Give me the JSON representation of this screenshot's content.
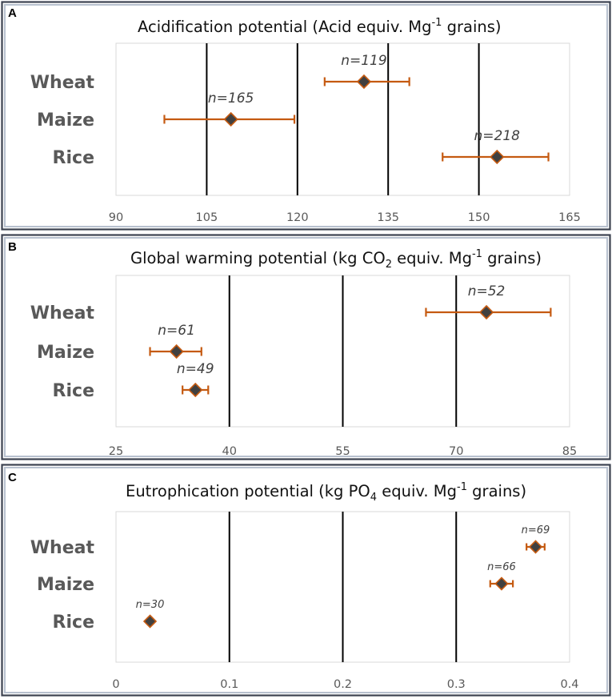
{
  "chart_data": [
    {
      "type": "scatter",
      "panel": "A",
      "title": "Acidification potential (Acid equiv. Mg",
      "title_sup": "-1",
      "title_end": " grains)",
      "categories": [
        "Wheat",
        "Maize",
        "Rice"
      ],
      "x": [
        131,
        109,
        153
      ],
      "x_err_low": [
        124.5,
        98,
        144
      ],
      "x_err_high": [
        138.5,
        119.5,
        161.5
      ],
      "n_labels": [
        "n=119",
        "n=165",
        "n=218"
      ],
      "xlim": [
        90,
        165
      ],
      "ticks": [
        90,
        105,
        120,
        135,
        150,
        165
      ],
      "tick_labels": [
        "90",
        "105",
        "120",
        "135",
        "150",
        "165"
      ],
      "gridlines": [
        105,
        120,
        135,
        150
      ],
      "xlabel": "",
      "ylabel": ""
    },
    {
      "type": "scatter",
      "panel": "B",
      "title": "Global warming potential (kg CO",
      "title_sub": "2",
      "title_mid": " equiv. Mg",
      "title_sup": "-1",
      "title_end": " grains)",
      "categories": [
        "Wheat",
        "Maize",
        "Rice"
      ],
      "x": [
        74,
        33,
        35.5
      ],
      "x_err_low": [
        66,
        29.5,
        33.8
      ],
      "x_err_high": [
        82.5,
        36.3,
        37.2
      ],
      "n_labels": [
        "n=52",
        "n=61",
        "n=49"
      ],
      "xlim": [
        25,
        85
      ],
      "ticks": [
        25,
        40,
        55,
        70,
        85
      ],
      "tick_labels": [
        "25",
        "40",
        "55",
        "70",
        "85"
      ],
      "gridlines": [
        40,
        55,
        70
      ],
      "xlabel": "",
      "ylabel": ""
    },
    {
      "type": "scatter",
      "panel": "C",
      "title": "Eutrophication potential (kg PO",
      "title_sub": "4",
      "title_mid": " equiv. Mg",
      "title_sup": "-1",
      "title_end": " grains)",
      "categories": [
        "Wheat",
        "Maize",
        "Rice"
      ],
      "x": [
        0.37,
        0.34,
        0.03
      ],
      "x_err_low": [
        0.362,
        0.33,
        0.03
      ],
      "x_err_high": [
        0.378,
        0.35,
        0.03
      ],
      "n_labels": [
        "n=69",
        "n=66",
        "n=30"
      ],
      "xlim": [
        0,
        0.4
      ],
      "ticks": [
        0,
        0.1,
        0.2,
        0.3,
        0.4
      ],
      "tick_labels": [
        "0",
        "0.1",
        "0.2",
        "0.3",
        "0.4"
      ],
      "gridlines": [
        0.1,
        0.2,
        0.3
      ],
      "xlabel": "",
      "ylabel": ""
    }
  ],
  "colors": {
    "error_bar": "#c55a11",
    "marker_fill": "#404040",
    "gridline": "#000000",
    "category_text": "#595959",
    "n_label_text": "#404040",
    "frame": "#3c4250"
  }
}
